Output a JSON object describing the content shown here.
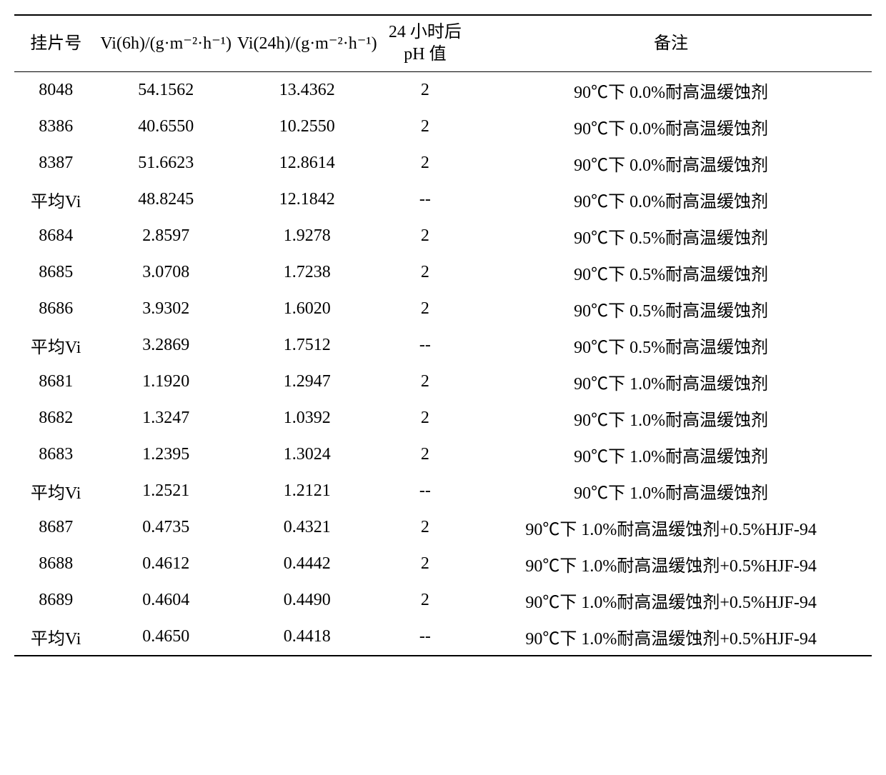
{
  "headers": {
    "col1": "挂片号",
    "col2": "Vi(6h)/(g·m⁻²·h⁻¹)",
    "col3": "Vi(24h)/(g·m⁻²·h⁻¹)",
    "col4": "24 小时后 pH 值",
    "col5": "备注"
  },
  "rows": [
    {
      "id": "8048",
      "vi6": "54.1562",
      "vi24": "13.4362",
      "ph": "2",
      "note": "90℃下 0.0%耐高温缓蚀剂",
      "bold": false
    },
    {
      "id": "8386",
      "vi6": "40.6550",
      "vi24": "10.2550",
      "ph": "2",
      "note": "90℃下 0.0%耐高温缓蚀剂",
      "bold": false
    },
    {
      "id": "8387",
      "vi6": "51.6623",
      "vi24": "12.8614",
      "ph": "2",
      "note": "90℃下 0.0%耐高温缓蚀剂",
      "bold": false
    },
    {
      "id": "平均Vi",
      "vi6": "48.8245",
      "vi24": "12.1842",
      "ph": "--",
      "note": "90℃下 0.0%耐高温缓蚀剂",
      "bold": true
    },
    {
      "id": "8684",
      "vi6": "2.8597",
      "vi24": "1.9278",
      "ph": "2",
      "note": "90℃下 0.5%耐高温缓蚀剂",
      "bold": false
    },
    {
      "id": "8685",
      "vi6": "3.0708",
      "vi24": "1.7238",
      "ph": "2",
      "note": "90℃下 0.5%耐高温缓蚀剂",
      "bold": false
    },
    {
      "id": "8686",
      "vi6": "3.9302",
      "vi24": "1.6020",
      "ph": "2",
      "note": "90℃下 0.5%耐高温缓蚀剂",
      "bold": false
    },
    {
      "id": "平均Vi",
      "vi6": "3.2869",
      "vi24": "1.7512",
      "ph": "--",
      "note": "90℃下 0.5%耐高温缓蚀剂",
      "bold": true
    },
    {
      "id": "8681",
      "vi6": "1.1920",
      "vi24": "1.2947",
      "ph": "2",
      "note": "90℃下 1.0%耐高温缓蚀剂",
      "bold": false
    },
    {
      "id": "8682",
      "vi6": "1.3247",
      "vi24": "1.0392",
      "ph": "2",
      "note": "90℃下 1.0%耐高温缓蚀剂",
      "bold": false
    },
    {
      "id": "8683",
      "vi6": "1.2395",
      "vi24": "1.3024",
      "ph": "2",
      "note": "90℃下 1.0%耐高温缓蚀剂",
      "bold": false
    },
    {
      "id": "平均Vi",
      "vi6": "1.2521",
      "vi24": "1.2121",
      "ph": "--",
      "note": "90℃下 1.0%耐高温缓蚀剂",
      "bold": true
    },
    {
      "id": "8687",
      "vi6": "0.4735",
      "vi24": "0.4321",
      "ph": "2",
      "note": "90℃下 1.0%耐高温缓蚀剂+0.5%HJF-94",
      "bold": false
    },
    {
      "id": "8688",
      "vi6": "0.4612",
      "vi24": "0.4442",
      "ph": "2",
      "note": "90℃下 1.0%耐高温缓蚀剂+0.5%HJF-94",
      "bold": false
    },
    {
      "id": "8689",
      "vi6": "0.4604",
      "vi24": "0.4490",
      "ph": "2",
      "note": "90℃下 1.0%耐高温缓蚀剂+0.5%HJF-94",
      "bold": false
    },
    {
      "id": "平均Vi",
      "vi6": "0.4650",
      "vi24": "0.4418",
      "ph": "--",
      "note": "90℃下 1.0%耐高温缓蚀剂+0.5%HJF-94",
      "bold": true
    }
  ],
  "styling": {
    "font_family": "Times New Roman, SimSun, serif",
    "font_size_pt": 18,
    "border_color": "#000000",
    "background_color": "#ffffff",
    "text_color": "#000000",
    "header_border_top_width": 2,
    "header_border_bottom_width": 1.5,
    "footer_border_bottom_width": 2,
    "col_widths_pct": [
      10,
      15,
      15,
      11,
      49
    ]
  }
}
